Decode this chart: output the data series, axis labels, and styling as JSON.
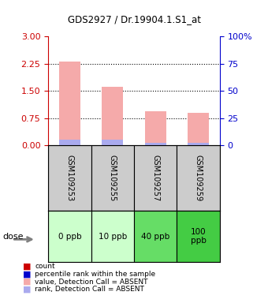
{
  "title": "GDS2927 / Dr.19904.1.S1_at",
  "samples": [
    "GSM109253",
    "GSM109255",
    "GSM109257",
    "GSM109259"
  ],
  "doses": [
    "0 ppb",
    "10 ppb",
    "40 ppb",
    "100\nppb"
  ],
  "bar_values": [
    2.3,
    1.62,
    0.95,
    0.9
  ],
  "rank_values": [
    0.15,
    0.15,
    0.07,
    0.08
  ],
  "bar_color": "#F5AAAA",
  "rank_color": "#AAAAEE",
  "left_yticks": [
    0,
    0.75,
    1.5,
    2.25,
    3.0
  ],
  "left_ylim": [
    0,
    3.0
  ],
  "right_yticks": [
    0,
    25,
    50,
    75,
    100
  ],
  "right_ylim": [
    0,
    100
  ],
  "left_ycolor": "#CC0000",
  "right_ycolor": "#0000CC",
  "grid_color": "black",
  "dose_colors": [
    "#CCFFCC",
    "#CCFFCC",
    "#66DD66",
    "#44CC44"
  ],
  "sample_bg_color": "#CCCCCC",
  "legend_items": [
    {
      "color": "#CC0000",
      "label": "count"
    },
    {
      "color": "#0000CC",
      "label": "percentile rank within the sample"
    },
    {
      "color": "#F5AAAA",
      "label": "value, Detection Call = ABSENT"
    },
    {
      "color": "#AAAAEE",
      "label": "rank, Detection Call = ABSENT"
    }
  ]
}
